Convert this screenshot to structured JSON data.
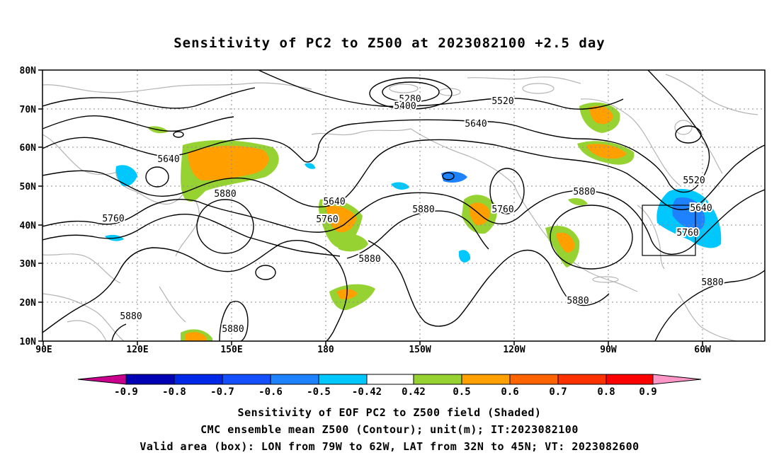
{
  "title": "Sensitivity of PC2 to Z500 at 2023082100 +2.5 day",
  "map": {
    "lat_labels": [
      "80N",
      "70N",
      "60N",
      "50N",
      "40N",
      "30N",
      "20N",
      "10N"
    ],
    "lon_labels": [
      "90E",
      "120E",
      "150E",
      "180",
      "150W",
      "120W",
      "90W",
      "60W"
    ],
    "contour_labels": [
      "5280",
      "5400",
      "5520",
      "5640",
      "5640",
      "5640",
      "5520",
      "5640",
      "5760",
      "5760",
      "5760",
      "5760",
      "5880",
      "5880",
      "5880",
      "5880",
      "5880",
      "5880",
      "5880",
      "5880"
    ],
    "valid_box": {
      "lon_from": "79W",
      "lon_to": "62W",
      "lat_from": "32N",
      "lat_to": "45N"
    },
    "colors": {
      "contour": "#000000",
      "coast": "#b4b4b4",
      "grid": "#8c8c8c"
    }
  },
  "colorbar": {
    "labels": [
      "-0.9",
      "-0.8",
      "-0.7",
      "-0.6",
      "-0.5",
      "-0.42",
      "0.42",
      "0.5",
      "0.6",
      "0.7",
      "0.8",
      "0.9"
    ],
    "colors": [
      "#c8008c",
      "#0000b4",
      "#0028e6",
      "#1450ff",
      "#1e82ff",
      "#00c8ff",
      "#ffffff",
      "#96d232",
      "#ffa000",
      "#ff6400",
      "#ff3200",
      "#ff0000",
      "#ff96c8"
    ]
  },
  "captions": [
    "Sensitivity of EOF PC2 to Z500 field (Shaded)",
    "CMC ensemble mean Z500 (Contour); unit(m); IT:2023082100",
    "Valid area (box): LON from 79W to 62W, LAT from 32N to 45N; VT: 2023082600"
  ]
}
